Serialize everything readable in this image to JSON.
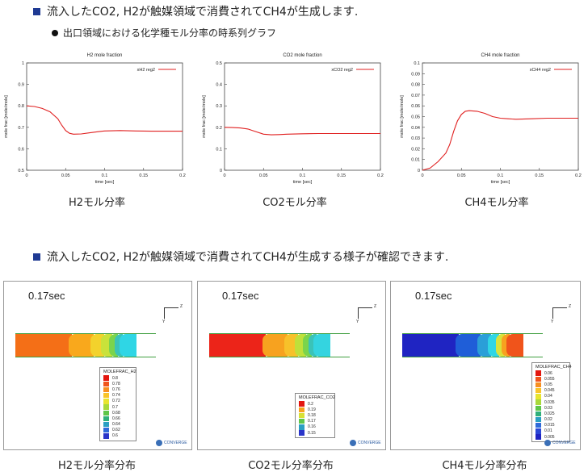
{
  "section1": {
    "title": "流入したCO2, H2が触媒領域で消費されてCH4が生成します.",
    "subtitle": "出口領域における化学種モル分率の時系列グラフ"
  },
  "section2": {
    "title": "流入したCO2, H2が触媒領域で消費されてCH4が生成する様子が確認できます."
  },
  "chart_data": [
    {
      "type": "line",
      "title": "H2 mole fraction",
      "xlabel": "time [sec]",
      "ylabel": "mole frac [mole/mole]",
      "xlim": [
        0,
        0.2
      ],
      "ylim": [
        0.5,
        1
      ],
      "xticks": [
        "0",
        "0.05",
        "0.1",
        "0.15",
        "0.2"
      ],
      "yticks": [
        "0.5",
        "0.6",
        "0.7",
        "0.8",
        "0.9",
        "1"
      ],
      "legend_position": "top-right",
      "grid": false,
      "series": [
        {
          "name": "xH2 reg2",
          "color": "#e02020",
          "x": [
            0,
            0.01,
            0.02,
            0.03,
            0.04,
            0.045,
            0.05,
            0.055,
            0.06,
            0.07,
            0.08,
            0.09,
            0.1,
            0.12,
            0.14,
            0.16,
            0.18,
            0.2
          ],
          "y": [
            0.8,
            0.797,
            0.788,
            0.772,
            0.74,
            0.71,
            0.685,
            0.672,
            0.668,
            0.669,
            0.674,
            0.679,
            0.683,
            0.685,
            0.683,
            0.682,
            0.682,
            0.682
          ]
        }
      ]
    },
    {
      "type": "line",
      "title": "CO2 mole fraction",
      "xlabel": "time [sec]",
      "ylabel": "mole frac [mole/mole]",
      "xlim": [
        0,
        0.2
      ],
      "ylim": [
        0,
        0.5
      ],
      "xticks": [
        "0",
        "0.05",
        "0.1",
        "0.15",
        "0.2"
      ],
      "yticks": [
        "0",
        "0.1",
        "0.2",
        "0.3",
        "0.4",
        "0.5"
      ],
      "legend_position": "top-right",
      "grid": false,
      "series": [
        {
          "name": "xCO2 reg2",
          "color": "#e02020",
          "x": [
            0,
            0.01,
            0.02,
            0.03,
            0.04,
            0.05,
            0.06,
            0.07,
            0.08,
            0.1,
            0.12,
            0.15,
            0.2
          ],
          "y": [
            0.2,
            0.199,
            0.197,
            0.192,
            0.18,
            0.168,
            0.165,
            0.166,
            0.168,
            0.17,
            0.171,
            0.171,
            0.171
          ]
        }
      ]
    },
    {
      "type": "line",
      "title": "CH4 mole fraction",
      "xlabel": "time [sec]",
      "ylabel": "mole frac [mole/mole]",
      "xlim": [
        0,
        0.2
      ],
      "ylim": [
        0,
        0.1
      ],
      "xticks": [
        "0",
        "0.05",
        "0.1",
        "0.15",
        "0.2"
      ],
      "yticks": [
        "0",
        "0.01",
        "0.02",
        "0.03",
        "0.04",
        "0.05",
        "0.06",
        "0.07",
        "0.08",
        "0.09",
        "0.1"
      ],
      "legend_position": "top-right",
      "grid": false,
      "series": [
        {
          "name": "xCH4 reg2",
          "color": "#e02020",
          "x": [
            0,
            0.01,
            0.02,
            0.03,
            0.035,
            0.04,
            0.045,
            0.05,
            0.055,
            0.06,
            0.07,
            0.08,
            0.09,
            0.1,
            0.11,
            0.12,
            0.14,
            0.16,
            0.18,
            0.2
          ],
          "y": [
            0,
            0.002,
            0.008,
            0.016,
            0.024,
            0.036,
            0.046,
            0.052,
            0.055,
            0.0555,
            0.055,
            0.053,
            0.05,
            0.0485,
            0.048,
            0.0475,
            0.048,
            0.0485,
            0.0485,
            0.0485
          ]
        }
      ]
    }
  ],
  "chart_captions": [
    "H2モル分率",
    "CO2モル分率",
    "CH4モル分率"
  ],
  "panels": [
    {
      "time_label": "0.17sec",
      "caption": "H2モル分率分布",
      "legend_title": "MOLEFRAC_H2",
      "legend_levels": [
        "0.8",
        "0.78",
        "0.76",
        "0.74",
        "0.72",
        "0.7",
        "0.68",
        "0.66",
        "0.64",
        "0.62",
        "0.6"
      ],
      "legend_colors": [
        "#e3160f",
        "#f0541b",
        "#f78f21",
        "#f9c42a",
        "#e8e52f",
        "#a9d93b",
        "#5ec649",
        "#2fb07a",
        "#2a9fc2",
        "#2f6ad9",
        "#2a35c9"
      ],
      "field_colors": [
        "#f46f17",
        "#f9a81c",
        "#f3d22c",
        "#c9e23a",
        "#7ad44c",
        "#3ac3b8",
        "#2fd6e5"
      ],
      "logo": "CONVERGE"
    },
    {
      "time_label": "0.17sec",
      "caption": "CO2モル分率分布",
      "legend_title": "MOLEFRAC_CO2",
      "legend_levels": [
        "0.2",
        "0.19",
        "0.18",
        "0.17",
        "0.16",
        "0.15"
      ],
      "legend_colors": [
        "#e3160f",
        "#f7a21f",
        "#d8e035",
        "#5fc64a",
        "#2a9fc2",
        "#2a35c9"
      ],
      "field_colors": [
        "#ec2419",
        "#f7a21f",
        "#f7c12a",
        "#bfe03a",
        "#7ad44c",
        "#3ac3b8",
        "#34d4e0"
      ],
      "logo": "CONVERGE"
    },
    {
      "time_label": "0.17sec",
      "caption": "CH4モル分率分布",
      "legend_title": "MOLEFRAC_CH4",
      "legend_levels": [
        "0.06",
        "0.055",
        "0.05",
        "0.045",
        "0.04",
        "0.035",
        "0.03",
        "0.025",
        "0.02",
        "0.015",
        "0.01",
        "0.005"
      ],
      "legend_colors": [
        "#e3160f",
        "#f0541b",
        "#f78f21",
        "#f9c42a",
        "#e8e52f",
        "#a9d93b",
        "#5ec649",
        "#2fb07a",
        "#2a9fc2",
        "#2f6ad9",
        "#2a47d6",
        "#1f24c2"
      ],
      "field_colors": [
        "#1f24c2",
        "#1f5ed8",
        "#2a9fd8",
        "#2fd6e5",
        "#d9e23a",
        "#f7a21f",
        "#f0541b"
      ],
      "logo": "CONVERGE"
    }
  ],
  "axis_labels": {
    "z": "Z",
    "y": "Y"
  }
}
